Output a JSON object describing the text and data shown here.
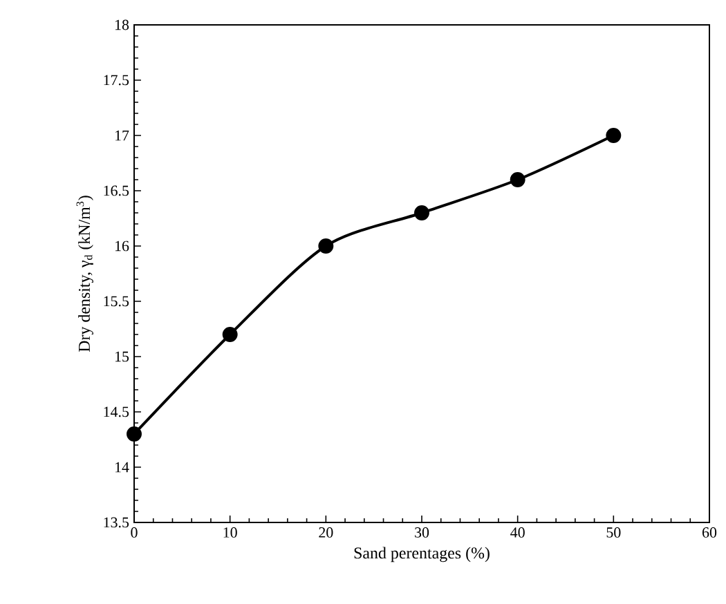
{
  "chart_data": {
    "type": "line",
    "xlabel": "Sand perentages (%)",
    "ylabel": "Dry density, γ$_{d}$ (kN/m$^{3}$)",
    "x": [
      0,
      10,
      20,
      30,
      40,
      50
    ],
    "values": [
      14.3,
      15.2,
      16.0,
      16.3,
      16.6,
      17.0
    ],
    "color": "#000000",
    "xlim": [
      0,
      60
    ],
    "ylim": [
      13.5,
      18
    ],
    "xticks": [
      0,
      10,
      20,
      30,
      40,
      50,
      60
    ],
    "yticks": [
      13.5,
      14,
      14.5,
      15,
      15.5,
      16,
      16.5,
      17,
      17.5,
      18
    ],
    "marker": "circle",
    "line_style": "solid"
  }
}
